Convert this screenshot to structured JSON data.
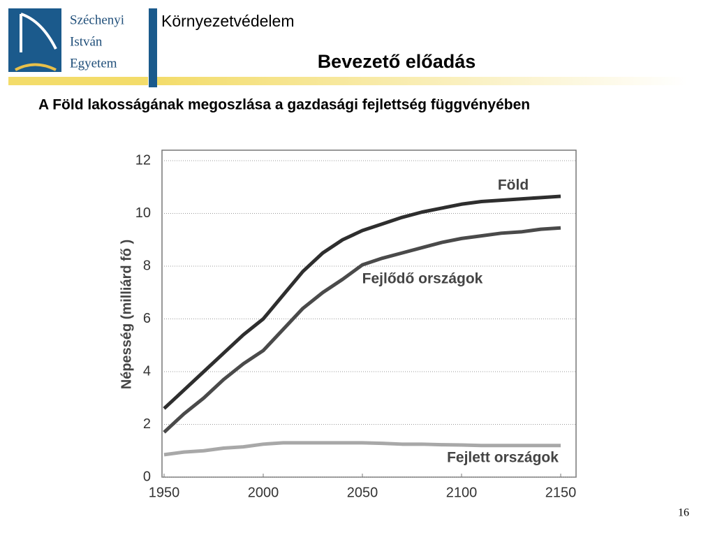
{
  "header": {
    "logo_lines": [
      "Széchenyi",
      "István",
      "Egyetem"
    ],
    "course": "Környezetvédelem",
    "lecture": "Bevezető előadás"
  },
  "slide_title": "A Föld lakosságának megoszlása a gazdasági fejlettség függvényében",
  "page_number": "16",
  "chart_data": {
    "type": "line",
    "ylabel": "Népesség (milliárd fő )",
    "x": [
      1950,
      1960,
      1970,
      1980,
      1990,
      2000,
      2010,
      2020,
      2030,
      2040,
      2050,
      2060,
      2070,
      2080,
      2090,
      2100,
      2110,
      2120,
      2130,
      2140,
      2150
    ],
    "xlim": [
      1950,
      2150
    ],
    "xticks": [
      1950,
      2000,
      2050,
      2100,
      2150
    ],
    "ylim": [
      0,
      12
    ],
    "yticks": [
      0,
      2,
      4,
      6,
      8,
      10,
      12
    ],
    "grid": true,
    "series": [
      {
        "name": "Föld",
        "color": "#2e2e2e",
        "values": [
          2.6,
          3.3,
          4.0,
          4.7,
          5.4,
          6.0,
          6.9,
          7.8,
          8.5,
          9.0,
          9.35,
          9.6,
          9.85,
          10.05,
          10.2,
          10.35,
          10.45,
          10.5,
          10.55,
          10.6,
          10.65
        ]
      },
      {
        "name": "Fejlődő országok",
        "color": "#4a4a4a",
        "values": [
          1.7,
          2.4,
          3.0,
          3.7,
          4.3,
          4.8,
          5.6,
          6.4,
          7.0,
          7.5,
          8.05,
          8.3,
          8.5,
          8.7,
          8.9,
          9.05,
          9.15,
          9.25,
          9.3,
          9.4,
          9.45
        ]
      },
      {
        "name": "Fejlett országok",
        "color": "#a8a8a8",
        "values": [
          0.85,
          0.95,
          1.0,
          1.1,
          1.15,
          1.25,
          1.3,
          1.3,
          1.3,
          1.3,
          1.3,
          1.28,
          1.25,
          1.25,
          1.23,
          1.22,
          1.2,
          1.2,
          1.2,
          1.2,
          1.2
        ]
      }
    ]
  }
}
